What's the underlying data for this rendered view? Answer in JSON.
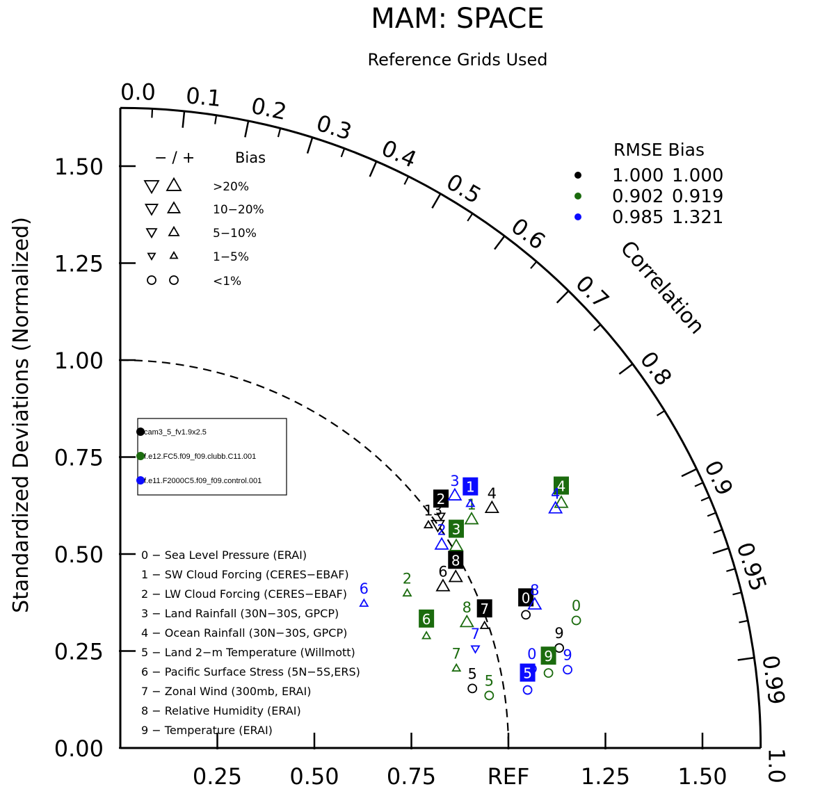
{
  "chart_data": {
    "type": "scatter",
    "title": "MAM: SPACE",
    "subtitle": "Reference Grids Used",
    "ylabel": "Standardized Deviations (Normalized)",
    "correlation_label": "Correlation",
    "ylim": [
      0,
      1.65
    ],
    "xlim": [
      0,
      1.65
    ],
    "y_ticks": [
      "0.00",
      "0.25",
      "0.50",
      "0.75",
      "1.00",
      "1.25",
      "1.50"
    ],
    "x_ticks": [
      "0.25",
      "0.50",
      "0.75",
      "REF",
      "1.25",
      "1.50"
    ],
    "correlation_ticks": [
      "0.0",
      "0.1",
      "0.2",
      "0.3",
      "0.4",
      "0.5",
      "0.6",
      "0.7",
      "0.8",
      "0.9",
      "0.95",
      "0.99",
      "1.0"
    ],
    "bias_legend": {
      "header_sign": "− / +",
      "header_bias": "Bias",
      "rows": [
        ">20%",
        "10−20%",
        "5−10%",
        "1−5%",
        "<1%"
      ]
    },
    "summary": {
      "header": "RMSE  Bias",
      "rows": [
        {
          "rmse": "1.000",
          "bias": "1.000",
          "color": "#000000"
        },
        {
          "rmse": "0.902",
          "bias": "0.919",
          "color": "#1b6b0e"
        },
        {
          "rmse": "0.985",
          "bias": "1.321",
          "color": "#0b0bff"
        }
      ]
    },
    "series": [
      {
        "name": "cam3_5_fv1.9x2.5",
        "color": "#000000",
        "points": [
          {
            "id": "0",
            "corr": 0.95,
            "std": 1.1,
            "bias": "o",
            "boxed": true
          },
          {
            "id": "1",
            "corr": 0.81,
            "std": 0.98,
            "bias": "tri-up-s",
            "boxed": false
          },
          {
            "id": "2",
            "corr": 0.81,
            "std": 1.02,
            "bias": "tri-dn-s",
            "boxed": true
          },
          {
            "id": "3",
            "corr": 0.818,
            "std": 1.0,
            "bias": "tri-dn",
            "boxed": false
          },
          {
            "id": "4",
            "corr": 0.84,
            "std": 1.14,
            "bias": "tri-up",
            "boxed": false
          },
          {
            "id": "5",
            "corr": 0.986,
            "std": 0.92,
            "bias": "o",
            "boxed": false
          },
          {
            "id": "6",
            "corr": 0.894,
            "std": 0.93,
            "bias": "tri-up",
            "boxed": false
          },
          {
            "id": "7",
            "corr": 0.948,
            "std": 0.99,
            "bias": "tri-up-s",
            "boxed": true
          },
          {
            "id": "8",
            "corr": 0.891,
            "std": 0.97,
            "bias": "tri-up",
            "boxed": true
          },
          {
            "id": "9",
            "corr": 0.975,
            "std": 1.16,
            "bias": "o",
            "boxed": false
          }
        ]
      },
      {
        "name": "f.e12.FC5.f09_f09.clubb.C11.001",
        "color": "#1b6b0e",
        "points": [
          {
            "id": "0",
            "corr": 0.963,
            "std": 1.22,
            "bias": "o",
            "boxed": false
          },
          {
            "id": "1",
            "corr": 0.838,
            "std": 1.08,
            "bias": "tri-up",
            "boxed": false
          },
          {
            "id": "2",
            "corr": 0.88,
            "std": 0.84,
            "bias": "tri-up-s",
            "boxed": false
          },
          {
            "id": "3",
            "corr": 0.857,
            "std": 1.01,
            "bias": "tri-up",
            "boxed": true
          },
          {
            "id": "4",
            "corr": 0.874,
            "std": 1.3,
            "bias": "tri-up",
            "boxed": true
          },
          {
            "id": "5",
            "corr": 0.99,
            "std": 0.96,
            "bias": "o",
            "boxed": false
          },
          {
            "id": "6",
            "corr": 0.939,
            "std": 0.84,
            "bias": "tri-up-s",
            "boxed": true
          },
          {
            "id": "7",
            "corr": 0.973,
            "std": 0.89,
            "bias": "tri-up-s",
            "boxed": false
          },
          {
            "id": "8",
            "corr": 0.94,
            "std": 0.95,
            "bias": "tri-up",
            "boxed": false
          },
          {
            "id": "9",
            "corr": 0.985,
            "std": 1.12,
            "bias": "o",
            "boxed": true
          }
        ]
      },
      {
        "name": "f.e11.F2000C5.f09_f09.control.001",
        "color": "#0b0bff",
        "points": [
          {
            "id": "0",
            "corr": 0.982,
            "std": 1.08,
            "bias": "o",
            "boxed": false
          },
          {
            "id": "1",
            "corr": 0.82,
            "std": 1.1,
            "bias": "tri-up-s",
            "boxed": true
          },
          {
            "id": "2",
            "corr": 0.845,
            "std": 0.98,
            "bias": "tri-up",
            "boxed": false
          },
          {
            "id": "3",
            "corr": 0.798,
            "std": 1.08,
            "bias": "tri-up",
            "boxed": false
          },
          {
            "id": "4",
            "corr": 0.876,
            "std": 1.28,
            "bias": "tri-up",
            "boxed": false
          },
          {
            "id": "5",
            "corr": 0.99,
            "std": 1.06,
            "bias": "o",
            "boxed": true
          },
          {
            "id": "6",
            "corr": 0.86,
            "std": 0.73,
            "bias": "tri-up-s",
            "boxed": false
          },
          {
            "id": "7",
            "corr": 0.963,
            "std": 0.95,
            "bias": "tri-dn-s",
            "boxed": false
          },
          {
            "id": "8",
            "corr": 0.945,
            "std": 1.13,
            "bias": "tri-up",
            "boxed": false
          },
          {
            "id": "9",
            "corr": 0.985,
            "std": 1.17,
            "bias": "o",
            "boxed": false
          }
        ]
      }
    ],
    "variables": [
      "0 − Sea Level Pressure (ERAI)",
      "1 − SW Cloud Forcing (CERES−EBAF)",
      "2 − LW Cloud Forcing (CERES−EBAF)",
      "3 − Land Rainfall (30N−30S, GPCP)",
      "4 − Ocean Rainfall (30N−30S, GPCP)",
      "5 − Land 2−m Temperature (Willmott)",
      "6 − Pacific Surface Stress (5N−5S,ERS)",
      "7 − Zonal Wind (300mb, ERAI)",
      "8 − Relative Humidity (ERAI)",
      "9 − Temperature (ERAI)"
    ]
  }
}
